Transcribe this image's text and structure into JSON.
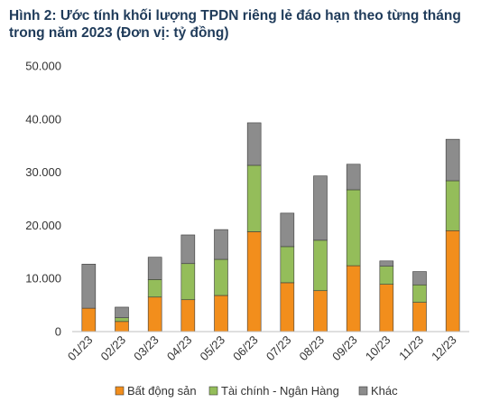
{
  "chart_data": {
    "type": "bar",
    "stacked": true,
    "title": "Hình 2: Ước tính khối lượng TPDN riêng lẻ đáo hạn theo từng tháng trong năm 2023 (Đơn vị: tỷ đồng)",
    "categories": [
      "01/23",
      "02/23",
      "03/23",
      "04/23",
      "05/23",
      "06/23",
      "07/23",
      "08/23",
      "09/23",
      "10/23",
      "11/23",
      "12/23"
    ],
    "series": [
      {
        "name": "Bất động sản",
        "color": "#f28e1c",
        "values": [
          4400,
          1900,
          6500,
          6000,
          6800,
          18800,
          9200,
          7700,
          12400,
          8900,
          5500,
          19000
        ]
      },
      {
        "name": "Tài chính - Ngân Hàng",
        "color": "#94bd5a",
        "values": [
          0,
          700,
          3300,
          6800,
          6800,
          12500,
          6800,
          9500,
          14300,
          3400,
          3300,
          9400
        ]
      },
      {
        "name": "Khác",
        "color": "#8c8c8c",
        "values": [
          8300,
          2000,
          4200,
          5400,
          5600,
          8000,
          6300,
          12100,
          4800,
          1000,
          2500,
          7800
        ]
      }
    ],
    "yticks": [
      "0",
      "10.000",
      "20.000",
      "30.000",
      "40.000",
      "50.000"
    ],
    "ylim": [
      0,
      50000
    ],
    "legend_position": "bottom",
    "grid": false
  }
}
